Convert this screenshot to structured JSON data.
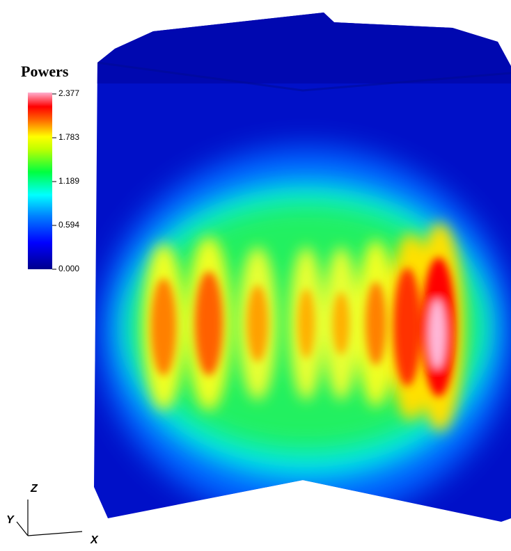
{
  "legend": {
    "title": "Powers",
    "ticks": [
      "2.377",
      "1.783",
      "1.189",
      "0.594",
      "0.000"
    ]
  },
  "axes": {
    "z": "Z",
    "y": "Y",
    "x": "X"
  }
}
